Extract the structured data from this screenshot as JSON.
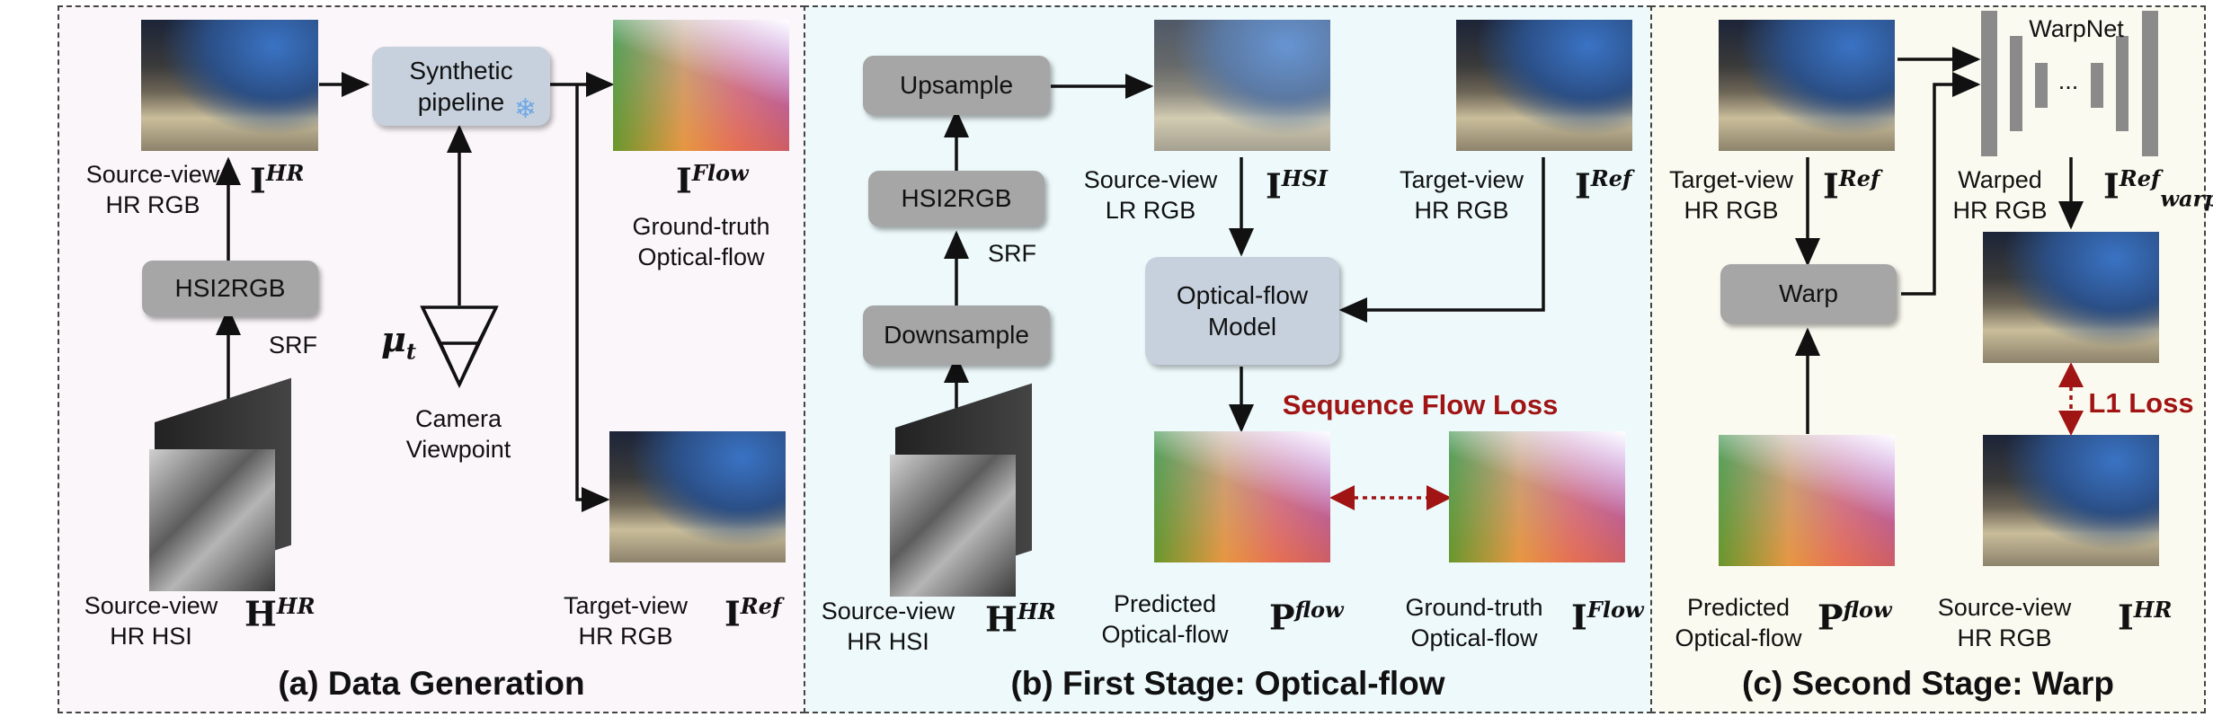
{
  "panels": {
    "a_caption": "(a) Data Generation",
    "b_caption": "(b) First Stage: Optical-flow",
    "c_caption": "(c) Second Stage: Warp"
  },
  "panel_a": {
    "source_view_hr_rgb": "Source-view\nHR RGB",
    "hsi2rgb": "HSI2RGB",
    "srf": "SRF",
    "synthetic_pipeline": "Synthetic\npipeline",
    "camera_viewpoint": "Camera\nViewpoint",
    "ground_truth_flow": "Ground-truth\nOptical-flow",
    "source_view_hr_hsi": "Source-view\nHR HSI",
    "target_view_hr_rgb": "Target-view\nHR RGB",
    "mu_t": "μ",
    "mu_sub": "t",
    "I_HR": "I",
    "I_HR_sup": "HR",
    "I_Flow": "I",
    "I_Flow_sup": "Flow",
    "H_HR": "H",
    "H_HR_sup": "HR",
    "I_Ref": "I",
    "I_Ref_sup": "Ref"
  },
  "panel_b": {
    "upsample": "Upsample",
    "hsi2rgb": "HSI2RGB",
    "srf": "SRF",
    "downsample": "Downsample",
    "source_view_lr_rgb": "Source-view\nLR RGB",
    "target_view_hr_rgb": "Target-view\nHR RGB",
    "optical_flow_model": "Optical-flow\nModel",
    "sequence_flow_loss": "Sequence Flow Loss",
    "source_view_hr_hsi": "Source-view\nHR HSI",
    "predicted_flow": "Predicted\nOptical-flow",
    "ground_truth_flow": "Ground-truth\nOptical-flow",
    "I_HSI": "I",
    "I_HSI_sup": "HSI",
    "I_Ref": "I",
    "I_Ref_sup": "Ref",
    "H_HR": "H",
    "H_HR_sup": "HR",
    "P_flow": "P",
    "P_flow_sup": "flow",
    "I_Flow": "I",
    "I_Flow_sup": "Flow"
  },
  "panel_c": {
    "warpnet": "WarpNet",
    "ellipsis": "...",
    "target_view_hr_rgb": "Target-view\nHR RGB",
    "warped_hr_rgb": "Warped\nHR RGB",
    "warp": "Warp",
    "l1_loss": "L1 Loss",
    "predicted_flow": "Predicted\nOptical-flow",
    "source_view_hr_rgb": "Source-view\nHR RGB",
    "I_Ref": "I",
    "I_Ref_sup": "Ref",
    "I_warp": "I",
    "I_warp_sup": "Ref",
    "I_warp_sub": "warp",
    "P_flow": "P",
    "P_flow_sup": "flow",
    "I_HR": "I",
    "I_HR_sup": "HR"
  },
  "colors": {
    "panel_a_bg": "#fbf6fa",
    "panel_b_bg": "#edf9fb",
    "panel_c_bg": "#fbfaf0",
    "loss_red": "#a01414",
    "arrow": "#111111"
  }
}
